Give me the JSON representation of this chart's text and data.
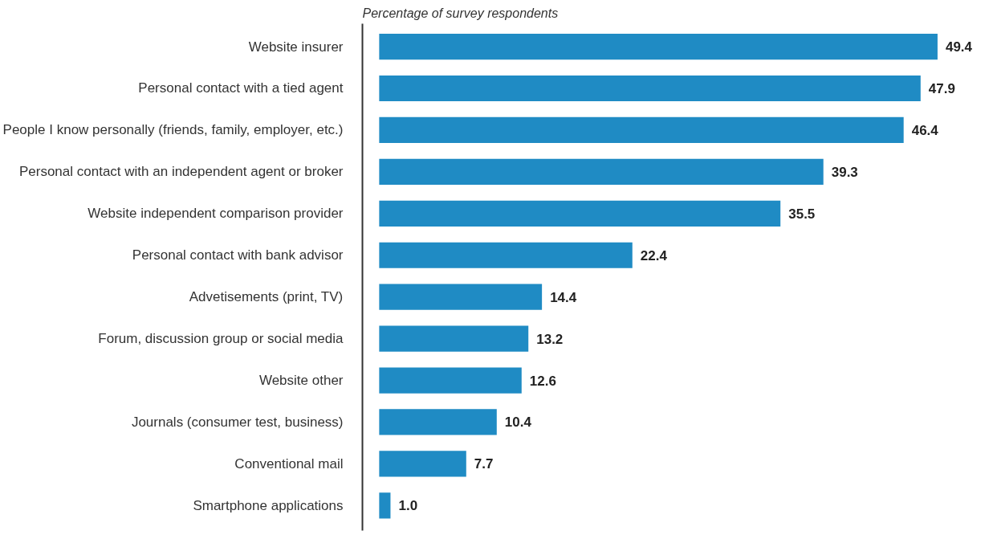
{
  "chart_data": {
    "type": "bar",
    "orientation": "horizontal",
    "subtitle": "Percentage of survey respondents",
    "categories": [
      "Website insurer",
      "Personal contact with a tied agent",
      "People I know personally (friends, family, employer, etc.)",
      "Personal contact with an independent agent or broker",
      "Website independent comparison provider",
      "Personal contact with bank advisor",
      "Advetisements (print, TV)",
      "Forum, discussion group or social media",
      "Website other",
      "Journals (consumer test, business)",
      "Conventional mail",
      "Smartphone applications"
    ],
    "values": [
      49.4,
      47.9,
      46.4,
      39.3,
      35.5,
      22.4,
      14.4,
      13.2,
      12.6,
      10.4,
      7.7,
      1.0
    ],
    "value_labels": [
      "49.4",
      "47.9",
      "46.4",
      "39.3",
      "35.5",
      "22.4",
      "14.4",
      "13.2",
      "12.6",
      "10.4",
      "7.7",
      "1.0"
    ],
    "color": "#1f8bc4",
    "grid": false
  }
}
